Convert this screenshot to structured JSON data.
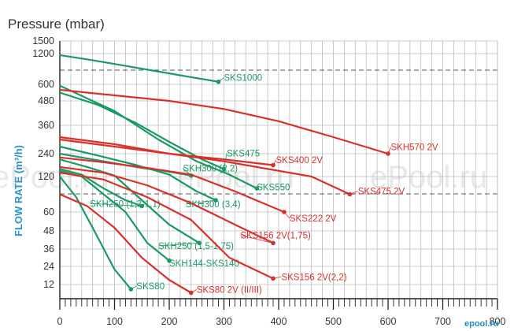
{
  "chart_data": {
    "type": "line",
    "title": "Pressure (mbar)",
    "ylabel": "FLOW RATE (m³/h)",
    "xlabel": "",
    "y_ticks": [
      "1500",
      "1200",
      "600",
      "480",
      "360",
      "240",
      "120",
      "60",
      "48",
      "36",
      "24",
      "12"
    ],
    "y_tick_values": [
      1500,
      1200,
      600,
      480,
      360,
      240,
      120,
      60,
      48,
      36,
      24,
      12
    ],
    "x_ticks": [
      "0",
      "100",
      "200",
      "300",
      "400",
      "500",
      "600",
      "700",
      "800"
    ],
    "x_tick_values": [
      0,
      100,
      200,
      300,
      400,
      500,
      600,
      700,
      800
    ],
    "xlim": [
      0,
      800
    ],
    "dashed_y": [
      1000,
      100
    ],
    "grid": true,
    "colors": {
      "green": "#1a9a63",
      "red": "#d9302c",
      "axis": "#222222",
      "grid": "#bcbcbc"
    },
    "watermark": [
      "ePool.ru",
      "ePool.ru",
      "ePool.ru"
    ],
    "brand": "epool.ru",
    "series": [
      {
        "name": "SKS1000",
        "color": "green",
        "label_at": [
          300,
          670
        ],
        "points": [
          [
            0,
            1170
          ],
          [
            60,
            1070
          ],
          [
            120,
            960
          ],
          [
            180,
            850
          ],
          [
            240,
            740
          ],
          [
            290,
            650
          ]
        ]
      },
      {
        "name": "SKS475",
        "color": "green",
        "label_at": [
          305,
          225
        ],
        "points": [
          [
            0,
            540
          ],
          [
            70,
            460
          ],
          [
            140,
            370
          ],
          [
            200,
            290
          ],
          [
            260,
            210
          ],
          [
            300,
            160
          ]
        ]
      },
      {
        "name": "SKS550",
        "color": "green",
        "label_at": [
          360,
          97
        ],
        "points": [
          [
            0,
            590
          ],
          [
            100,
            430
          ],
          [
            180,
            300
          ],
          [
            250,
            200
          ],
          [
            310,
            130
          ],
          [
            360,
            100
          ]
        ]
      },
      {
        "name": "SKH300 (2,2)",
        "color": "green",
        "label_at": [
          225,
          147
        ],
        "points": [
          [
            0,
            240
          ],
          [
            50,
            215
          ],
          [
            100,
            190
          ],
          [
            150,
            165
          ],
          [
            200,
            145
          ],
          [
            240,
            125
          ]
        ]
      },
      {
        "name": "SKH300 (3,4)",
        "color": "green",
        "label_at": [
          230,
          68
        ],
        "points": [
          [
            0,
            270
          ],
          [
            70,
            230
          ],
          [
            140,
            180
          ],
          [
            200,
            130
          ],
          [
            250,
            95
          ],
          [
            285,
            80
          ]
        ]
      },
      {
        "name": "SKH250 (1,3-1,1)",
        "color": "green",
        "label_at": [
          55,
          69
        ],
        "points": [
          [
            0,
            160
          ],
          [
            40,
            130
          ],
          [
            80,
            100
          ],
          [
            120,
            80
          ],
          [
            150,
            70
          ]
        ]
      },
      {
        "name": "SKH250 (1,5-1,75)",
        "color": "green",
        "label_at": [
          180,
          36
        ],
        "points": [
          [
            0,
            210
          ],
          [
            50,
            170
          ],
          [
            100,
            125
          ],
          [
            150,
            80
          ],
          [
            200,
            52
          ],
          [
            255,
            40
          ]
        ]
      },
      {
        "name": "SKH144-SKS140",
        "color": "green",
        "label_at": [
          200,
          24
        ],
        "points": [
          [
            0,
            150
          ],
          [
            40,
            120
          ],
          [
            80,
            90
          ],
          [
            120,
            60
          ],
          [
            160,
            40
          ],
          [
            200,
            28
          ]
        ]
      },
      {
        "name": "SKS80",
        "color": "green",
        "label_at": [
          140,
          8
        ],
        "points": [
          [
            0,
            120
          ],
          [
            30,
            85
          ],
          [
            60,
            50
          ],
          [
            100,
            22
          ],
          [
            130,
            8
          ]
        ]
      },
      {
        "name": "SKH570 2V",
        "color": "red",
        "label_at": [
          605,
          255
        ],
        "points": [
          [
            0,
            560
          ],
          [
            100,
            520
          ],
          [
            200,
            480
          ],
          [
            300,
            440
          ],
          [
            400,
            380
          ],
          [
            500,
            310
          ],
          [
            600,
            240
          ]
        ]
      },
      {
        "name": "SKS400 2V",
        "color": "red",
        "label_at": [
          395,
          190
        ],
        "points": [
          [
            0,
            300
          ],
          [
            100,
            270
          ],
          [
            200,
            240
          ],
          [
            300,
            210
          ],
          [
            390,
            180
          ]
        ]
      },
      {
        "name": "SKS475 2V",
        "color": "red",
        "label_at": [
          545,
          90
        ],
        "points": [
          [
            0,
            310
          ],
          [
            100,
            280
          ],
          [
            200,
            240
          ],
          [
            300,
            200
          ],
          [
            400,
            150
          ],
          [
            460,
            120
          ],
          [
            530,
            90
          ]
        ]
      },
      {
        "name": "SKS222 2V",
        "color": "red",
        "label_at": [
          420,
          54
        ],
        "points": [
          [
            0,
            220
          ],
          [
            80,
            195
          ],
          [
            160,
            165
          ],
          [
            240,
            130
          ],
          [
            320,
            95
          ],
          [
            410,
            60
          ]
        ]
      },
      {
        "name": "SKS156 2V(1,75)",
        "color": "red",
        "label_at": [
          330,
          43
        ],
        "points": [
          [
            0,
            170
          ],
          [
            80,
            140
          ],
          [
            160,
            105
          ],
          [
            240,
            75
          ],
          [
            320,
            52
          ],
          [
            390,
            40
          ]
        ]
      },
      {
        "name": "SKS156 2V(2,2)",
        "color": "red",
        "label_at": [
          405,
          15
        ],
        "points": [
          [
            0,
            140
          ],
          [
            80,
            115
          ],
          [
            160,
            85
          ],
          [
            240,
            55
          ],
          [
            310,
            30
          ],
          [
            390,
            16
          ]
        ]
      },
      {
        "name": "SKS80 2V (II/III)",
        "color": "red",
        "label_at": [
          250,
          5
        ],
        "points": [
          [
            0,
            90
          ],
          [
            50,
            70
          ],
          [
            100,
            50
          ],
          [
            150,
            30
          ],
          [
            200,
            15
          ],
          [
            240,
            5
          ]
        ]
      }
    ]
  }
}
